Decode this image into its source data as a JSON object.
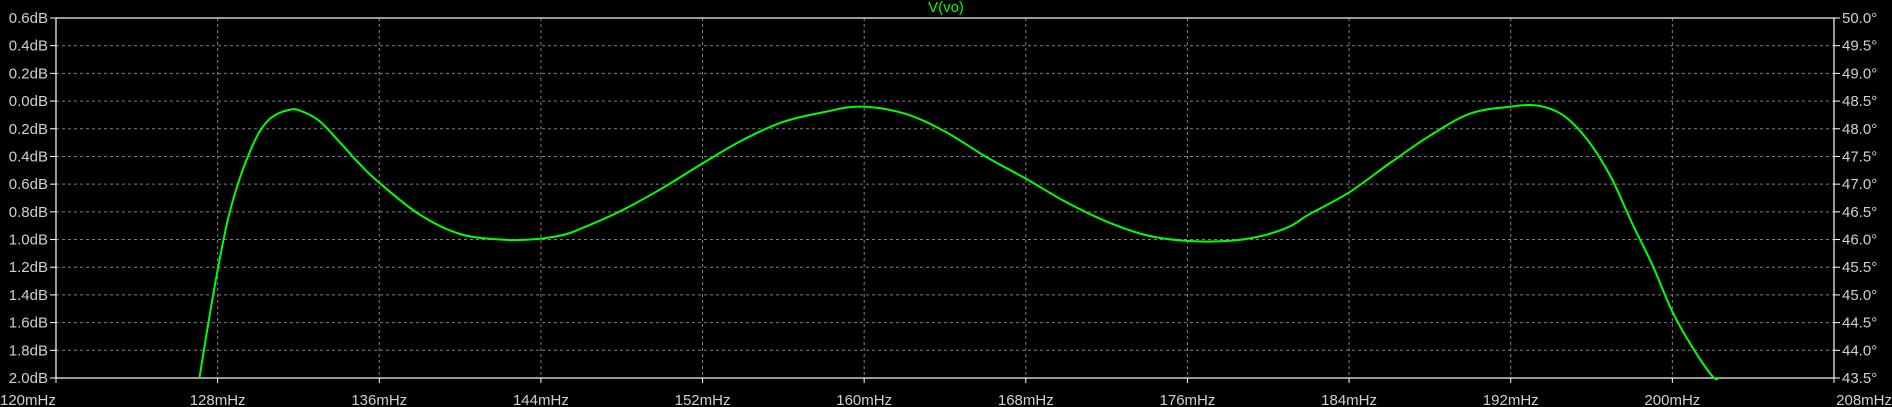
{
  "chart_data": {
    "type": "line",
    "title": "V(vo)",
    "x_tick_labels": [
      "120mHz",
      "128mHz",
      "136mHz",
      "144mHz",
      "152mHz",
      "160mHz",
      "168mHz",
      "176mHz",
      "184mHz",
      "192mHz",
      "200mHz",
      "208mHz"
    ],
    "xlim_mHz": [
      120,
      208
    ],
    "y_left_tick_labels": [
      "0.6dB",
      "0.4dB",
      "0.2dB",
      "0.0dB",
      "0.2dB",
      "0.4dB",
      "0.6dB",
      "0.8dB",
      "1.0dB",
      "1.2dB",
      "1.4dB",
      "1.6dB",
      "1.8dB",
      "2.0dB"
    ],
    "ylim_dB": [
      -2.0,
      0.6
    ],
    "y_right_tick_labels": [
      "50.0°",
      "49.5°",
      "49.0°",
      "48.5°",
      "48.0°",
      "47.5°",
      "47.0°",
      "46.5°",
      "46.0°",
      "45.5°",
      "45.0°",
      "44.5°",
      "44.0°",
      "43.5°"
    ],
    "ylim_deg": [
      43.5,
      50.0
    ],
    "grid": true,
    "colors": {
      "background": "#000000",
      "trace": "#00ff00",
      "axis": "#ffffff",
      "grid": "#808080",
      "tick_text": "#d0d0d0",
      "title": "#00ff00"
    },
    "series": [
      {
        "name": "V(vo)",
        "x_mHz": [
          127.1,
          127.5,
          128.0,
          128.5,
          129.0,
          129.5,
          130.0,
          130.5,
          131.0,
          131.5,
          132.0,
          133.0,
          134.0,
          135.0,
          136.0,
          138.0,
          140.0,
          142.0,
          143.5,
          145.0,
          146.0,
          148.0,
          150.0,
          152.0,
          154.0,
          156.0,
          158.0,
          159.8,
          162.0,
          164.0,
          166.0,
          168.0,
          170.0,
          172.0,
          174.0,
          176.0,
          178.0,
          179.5,
          181.0,
          182.0,
          184.0,
          186.0,
          188.0,
          190.0,
          192.0,
          193.2,
          194.2,
          195.0,
          196.0,
          197.0,
          198.0,
          199.0,
          200.0,
          201.0,
          202.0,
          202.3
        ],
        "y_dB": [
          -2.0,
          -1.64,
          -1.22,
          -0.86,
          -0.6,
          -0.4,
          -0.24,
          -0.14,
          -0.09,
          -0.065,
          -0.065,
          -0.14,
          -0.29,
          -0.45,
          -0.59,
          -0.82,
          -0.96,
          -1.0,
          -1.0,
          -0.97,
          -0.92,
          -0.79,
          -0.63,
          -0.45,
          -0.28,
          -0.15,
          -0.08,
          -0.04,
          -0.09,
          -0.22,
          -0.4,
          -0.56,
          -0.73,
          -0.87,
          -0.97,
          -1.01,
          -1.01,
          -0.98,
          -0.91,
          -0.82,
          -0.66,
          -0.45,
          -0.25,
          -0.09,
          -0.04,
          -0.03,
          -0.07,
          -0.15,
          -0.32,
          -0.56,
          -0.88,
          -1.18,
          -1.52,
          -1.78,
          -1.99,
          -2.0
        ]
      }
    ]
  }
}
